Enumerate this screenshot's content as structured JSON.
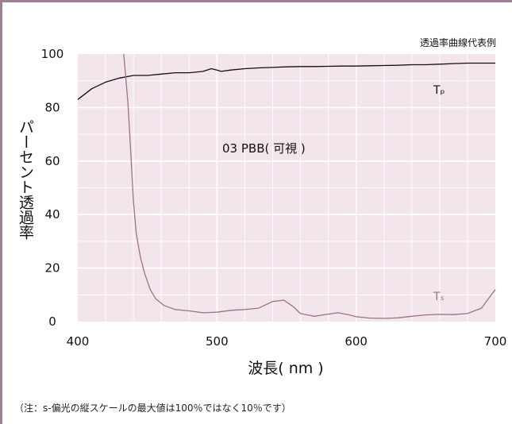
{
  "chart_data": {
    "type": "line",
    "title": "03 PBB( 可視 )",
    "subtitle": "透過率曲線代表例",
    "xlabel": "波長( nm )",
    "ylabel": "パーセント透過率",
    "xlim": [
      400,
      700
    ],
    "ylim": [
      0,
      100
    ],
    "xticks": [
      "400",
      "500",
      "600",
      "700"
    ],
    "yticks": [
      "0",
      "20",
      "40",
      "60",
      "80",
      "100"
    ],
    "grid": true,
    "background": "#f2e6ec",
    "series": [
      {
        "name": "Tₚ",
        "color": "#111111",
        "points": [
          [
            400,
            83
          ],
          [
            410,
            87
          ],
          [
            420,
            89.5
          ],
          [
            430,
            91
          ],
          [
            440,
            92
          ],
          [
            450,
            92
          ],
          [
            460,
            92.5
          ],
          [
            470,
            93
          ],
          [
            480,
            93
          ],
          [
            490,
            93.5
          ],
          [
            496,
            94.5
          ],
          [
            500,
            94
          ],
          [
            503,
            93.5
          ],
          [
            510,
            94
          ],
          [
            520,
            94.5
          ],
          [
            530,
            94.8
          ],
          [
            540,
            95
          ],
          [
            550,
            95.2
          ],
          [
            560,
            95.3
          ],
          [
            570,
            95.3
          ],
          [
            580,
            95.4
          ],
          [
            590,
            95.5
          ],
          [
            600,
            95.5
          ],
          [
            610,
            95.6
          ],
          [
            620,
            95.7
          ],
          [
            630,
            95.8
          ],
          [
            640,
            96
          ],
          [
            650,
            96
          ],
          [
            660,
            96.2
          ],
          [
            670,
            96.4
          ],
          [
            680,
            96.6
          ],
          [
            690,
            96.6
          ],
          [
            700,
            96.6
          ]
        ]
      },
      {
        "name": "Tₛ",
        "color": "#9b7384",
        "points": [
          [
            433,
            100
          ],
          [
            436,
            82
          ],
          [
            438,
            64
          ],
          [
            440,
            45
          ],
          [
            442,
            33
          ],
          [
            445,
            24
          ],
          [
            448,
            18
          ],
          [
            452,
            12
          ],
          [
            456,
            8.5
          ],
          [
            462,
            6
          ],
          [
            470,
            4.5
          ],
          [
            480,
            4
          ],
          [
            490,
            3.3
          ],
          [
            500,
            3.5
          ],
          [
            510,
            4.2
          ],
          [
            520,
            4.5
          ],
          [
            530,
            5
          ],
          [
            540,
            7.5
          ],
          [
            548,
            8
          ],
          [
            555,
            5.5
          ],
          [
            560,
            3
          ],
          [
            570,
            2
          ],
          [
            580,
            2.8
          ],
          [
            587,
            3.3
          ],
          [
            595,
            2.5
          ],
          [
            600,
            1.8
          ],
          [
            610,
            1.3
          ],
          [
            620,
            1.2
          ],
          [
            630,
            1.4
          ],
          [
            640,
            2
          ],
          [
            650,
            2.5
          ],
          [
            660,
            2.7
          ],
          [
            670,
            2.6
          ],
          [
            680,
            3
          ],
          [
            690,
            5
          ],
          [
            695,
            8.5
          ],
          [
            700,
            12
          ]
        ]
      }
    ]
  },
  "footnote": "（注：s-偏光の縦スケールの最大値は100％ではなく10％です）"
}
